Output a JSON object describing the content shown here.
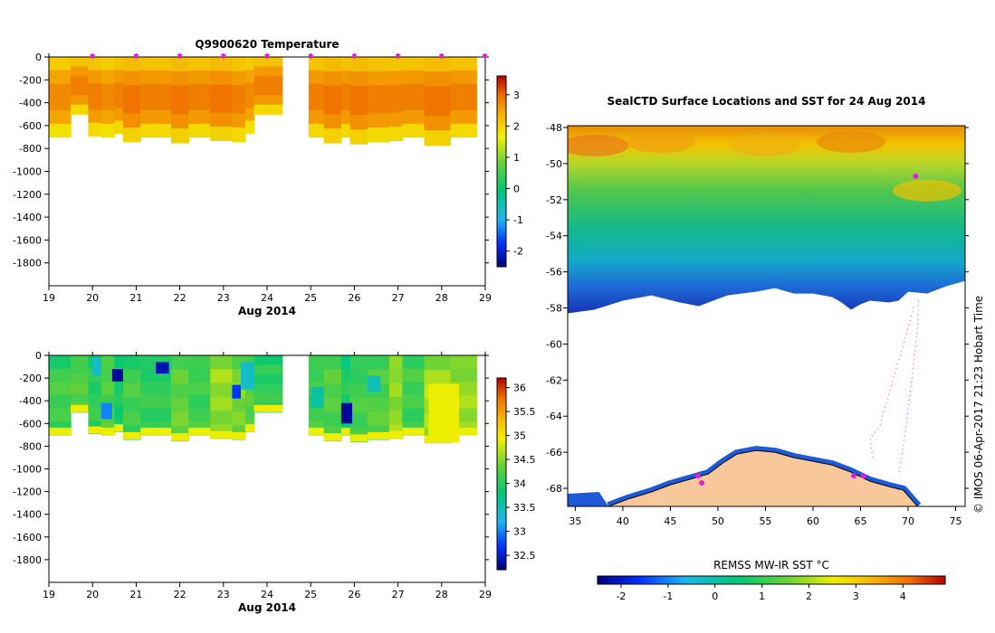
{
  "chart_data": [
    {
      "type": "heatmap",
      "title": "Q9900620  Temperature",
      "xlabel": "Aug 2014",
      "x_ticks": [
        "19",
        "20",
        "21",
        "22",
        "23",
        "24",
        "25",
        "26",
        "27",
        "28",
        "29"
      ],
      "xlim": [
        19,
        29
      ],
      "y_ticks": [
        "0",
        "-200",
        "-400",
        "-600",
        "-800",
        "-1000",
        "-1200",
        "-1400",
        "-1600",
        "-1800"
      ],
      "ylim": [
        -2000,
        0
      ],
      "colorbar": {
        "ticks": [
          "3",
          "2",
          "1",
          "0",
          "-1",
          "-2"
        ],
        "range": [
          -2.5,
          3.6
        ]
      },
      "profile_times": [
        20.0,
        21.0,
        22.0,
        23.0,
        24.0,
        25.0,
        26.0,
        27.0,
        28.0,
        28.99
      ],
      "profiles": [
        {
          "t0": 19.0,
          "t1": 19.5,
          "bottom": -700,
          "value": 2.4
        },
        {
          "t0": 19.5,
          "t1": 19.9,
          "bottom": -500,
          "value": 2.5
        },
        {
          "t0": 19.9,
          "t1": 20.2,
          "bottom": -690,
          "value": 2.5
        },
        {
          "t0": 20.2,
          "t1": 20.5,
          "bottom": -700,
          "value": 2.4
        },
        {
          "t0": 20.5,
          "t1": 20.7,
          "bottom": -670,
          "value": 2.5
        },
        {
          "t0": 20.7,
          "t1": 21.1,
          "bottom": -740,
          "value": 2.6
        },
        {
          "t0": 21.1,
          "t1": 21.8,
          "bottom": -700,
          "value": 2.5
        },
        {
          "t0": 21.8,
          "t1": 22.2,
          "bottom": -750,
          "value": 2.6
        },
        {
          "t0": 22.2,
          "t1": 22.7,
          "bottom": -700,
          "value": 2.5
        },
        {
          "t0": 22.7,
          "t1": 23.2,
          "bottom": -730,
          "value": 2.6
        },
        {
          "t0": 23.2,
          "t1": 23.5,
          "bottom": -740,
          "value": 2.5
        },
        {
          "t0": 23.5,
          "t1": 23.7,
          "bottom": -670,
          "value": 2.4
        },
        {
          "t0": 23.7,
          "t1": 24.35,
          "bottom": -500,
          "value": 2.5
        },
        {
          "t0": 24.95,
          "t1": 25.3,
          "bottom": -700,
          "value": 2.5
        },
        {
          "t0": 25.3,
          "t1": 25.7,
          "bottom": -750,
          "value": 2.6
        },
        {
          "t0": 25.7,
          "t1": 25.9,
          "bottom": -700,
          "value": 2.5
        },
        {
          "t0": 25.9,
          "t1": 26.3,
          "bottom": -760,
          "value": 2.6
        },
        {
          "t0": 26.3,
          "t1": 26.8,
          "bottom": -740,
          "value": 2.5
        },
        {
          "t0": 26.8,
          "t1": 27.1,
          "bottom": -730,
          "value": 2.5
        },
        {
          "t0": 27.1,
          "t1": 27.6,
          "bottom": -700,
          "value": 2.5
        },
        {
          "t0": 27.6,
          "t1": 28.2,
          "bottom": -770,
          "value": 2.6
        },
        {
          "t0": 28.2,
          "t1": 28.8,
          "bottom": -700,
          "value": 2.5
        }
      ]
    },
    {
      "type": "heatmap",
      "title": "",
      "xlabel": "Aug 2014",
      "x_ticks": [
        "19",
        "20",
        "21",
        "22",
        "23",
        "24",
        "25",
        "26",
        "27",
        "28",
        "29"
      ],
      "xlim": [
        19,
        29
      ],
      "y_ticks": [
        "0",
        "-200",
        "-400",
        "-600",
        "-800",
        "-1000",
        "-1200",
        "-1400",
        "-1600",
        "-1800"
      ],
      "ylim": [
        -2000,
        0
      ],
      "colorbar": {
        "ticks": [
          "36",
          "35.5",
          "35",
          "34.5",
          "34",
          "33.5",
          "33",
          "32.5"
        ],
        "range": [
          32.2,
          36.2
        ]
      },
      "profiles": [
        {
          "t0": 19.0,
          "t1": 19.5,
          "bottom": -700,
          "value": 34.2
        },
        {
          "t0": 19.5,
          "t1": 19.9,
          "bottom": -500,
          "value": 34.3
        },
        {
          "t0": 19.9,
          "t1": 20.2,
          "bottom": -690,
          "value": 34.1
        },
        {
          "t0": 20.2,
          "t1": 20.5,
          "bottom": -700,
          "value": 34.3
        },
        {
          "t0": 20.5,
          "t1": 20.7,
          "bottom": -670,
          "value": 34.0
        },
        {
          "t0": 20.7,
          "t1": 21.1,
          "bottom": -740,
          "value": 34.2
        },
        {
          "t0": 21.1,
          "t1": 21.8,
          "bottom": -700,
          "value": 34.1
        },
        {
          "t0": 21.8,
          "t1": 22.2,
          "bottom": -750,
          "value": 34.4
        },
        {
          "t0": 22.2,
          "t1": 22.7,
          "bottom": -700,
          "value": 34.2
        },
        {
          "t0": 22.7,
          "t1": 23.2,
          "bottom": -730,
          "value": 34.6
        },
        {
          "t0": 23.2,
          "t1": 23.5,
          "bottom": -740,
          "value": 34.5
        },
        {
          "t0": 23.5,
          "t1": 23.7,
          "bottom": -670,
          "value": 34.3
        },
        {
          "t0": 23.7,
          "t1": 24.35,
          "bottom": -500,
          "value": 34.1
        },
        {
          "t0": 24.95,
          "t1": 25.3,
          "bottom": -700,
          "value": 34.2
        },
        {
          "t0": 25.3,
          "t1": 25.7,
          "bottom": -750,
          "value": 34.3
        },
        {
          "t0": 25.7,
          "t1": 25.9,
          "bottom": -700,
          "value": 34.0
        },
        {
          "t0": 25.9,
          "t1": 26.3,
          "bottom": -760,
          "value": 34.2
        },
        {
          "t0": 26.3,
          "t1": 26.8,
          "bottom": -740,
          "value": 34.3
        },
        {
          "t0": 26.8,
          "t1": 27.1,
          "bottom": -730,
          "value": 34.6
        },
        {
          "t0": 27.1,
          "t1": 27.6,
          "bottom": -700,
          "value": 34.2
        },
        {
          "t0": 27.6,
          "t1": 28.2,
          "bottom": -770,
          "value": 34.7
        },
        {
          "t0": 28.2,
          "t1": 28.8,
          "bottom": -700,
          "value": 34.6
        }
      ],
      "anomalies": [
        {
          "t0": 20.0,
          "t1": 20.2,
          "d0": -20,
          "d1": -180,
          "value": 33.4
        },
        {
          "t0": 20.45,
          "t1": 20.7,
          "d0": -120,
          "d1": -230,
          "value": 32.3
        },
        {
          "t0": 20.2,
          "t1": 20.45,
          "d0": -420,
          "d1": -560,
          "value": 33.0
        },
        {
          "t0": 21.45,
          "t1": 21.75,
          "d0": -60,
          "d1": -160,
          "value": 32.4
        },
        {
          "t0": 23.2,
          "t1": 23.4,
          "d0": -260,
          "d1": -380,
          "value": 32.7
        },
        {
          "t0": 23.4,
          "t1": 23.7,
          "d0": -60,
          "d1": -300,
          "value": 33.4
        },
        {
          "t0": 25.7,
          "t1": 25.95,
          "d0": -420,
          "d1": -600,
          "value": 32.3
        },
        {
          "t0": 25.0,
          "t1": 25.3,
          "d0": -280,
          "d1": -460,
          "value": 33.6
        },
        {
          "t0": 26.3,
          "t1": 26.6,
          "d0": -180,
          "d1": -320,
          "value": 33.5
        },
        {
          "t0": 27.7,
          "t1": 28.4,
          "d0": -250,
          "d1": -770,
          "value": 34.9
        }
      ]
    },
    {
      "type": "heatmap",
      "title": "SealCTD Surface Locations and SST for 24 Aug 2014",
      "x_ticks": [
        "35",
        "40",
        "45",
        "50",
        "55",
        "60",
        "65",
        "70",
        "75"
      ],
      "xlim": [
        34.2,
        76.0
      ],
      "y_ticks": [
        "-48",
        "-50",
        "-52",
        "-54",
        "-56",
        "-58",
        "-60",
        "-62",
        "-64",
        "-66",
        "-68"
      ],
      "ylim": [
        -69.0,
        -47.9
      ],
      "colorbar": {
        "label": "REMSS MW-IR SST °C",
        "ticks": [
          "-2",
          "-1",
          "0",
          "1",
          "2",
          "3",
          "4"
        ],
        "range": [
          -2.5,
          4.9
        ]
      },
      "ice_edge": [
        [
          34.2,
          -58.3
        ],
        [
          37,
          -58.1
        ],
        [
          40,
          -57.6
        ],
        [
          43,
          -57.3
        ],
        [
          46,
          -57.7
        ],
        [
          48,
          -57.9
        ],
        [
          51,
          -57.3
        ],
        [
          54,
          -57.1
        ],
        [
          56,
          -56.9
        ],
        [
          58,
          -57.2
        ],
        [
          60,
          -57.2
        ],
        [
          62,
          -57.4
        ],
        [
          63,
          -57.7
        ],
        [
          64,
          -58.1
        ],
        [
          65,
          -57.8
        ],
        [
          66,
          -57.6
        ],
        [
          68,
          -57.7
        ],
        [
          69,
          -57.6
        ],
        [
          70,
          -57.1
        ],
        [
          72,
          -57.2
        ],
        [
          74,
          -56.8
        ],
        [
          76,
          -56.5
        ]
      ],
      "antarctica": [
        [
          38.5,
          -69.0
        ],
        [
          40.5,
          -68.6
        ],
        [
          43,
          -68.2
        ],
        [
          45,
          -67.8
        ],
        [
          47,
          -67.5
        ],
        [
          49,
          -67.2
        ],
        [
          50.5,
          -66.6
        ],
        [
          52,
          -66.1
        ],
        [
          54,
          -65.9
        ],
        [
          56,
          -66.0
        ],
        [
          58,
          -66.3
        ],
        [
          60,
          -66.5
        ],
        [
          62,
          -66.7
        ],
        [
          64,
          -67.1
        ],
        [
          66,
          -67.6
        ],
        [
          68,
          -67.9
        ],
        [
          69.5,
          -68.1
        ],
        [
          70.5,
          -68.7
        ],
        [
          71,
          -69.0
        ]
      ],
      "track": [
        [
          66.3,
          -66.3
        ],
        [
          66.0,
          -65.2
        ],
        [
          67.0,
          -64.6
        ],
        [
          67.3,
          -64.0
        ],
        [
          68.2,
          -62.4
        ],
        [
          68.5,
          -61.8
        ],
        [
          69.2,
          -60.6
        ],
        [
          69.8,
          -59.5
        ],
        [
          70.3,
          -58.5
        ],
        [
          70.6,
          -57.9
        ]
      ],
      "track_east": [
        [
          71.1,
          -57.6
        ],
        [
          71.0,
          -59.0
        ],
        [
          70.6,
          -61.0
        ],
        [
          70.2,
          -62.8
        ],
        [
          69.8,
          -64.5
        ],
        [
          69.4,
          -66.0
        ],
        [
          69.0,
          -67.3
        ]
      ],
      "seal_positions": [
        [
          70.8,
          -50.7
        ],
        [
          47.9,
          -67.3
        ],
        [
          48.3,
          -67.7
        ],
        [
          65.3,
          -67.3
        ],
        [
          64.3,
          -67.3
        ]
      ]
    }
  ],
  "footer": {
    "credit": "© IMOS 06-Apr-2017 21:23 Hobart Time"
  }
}
